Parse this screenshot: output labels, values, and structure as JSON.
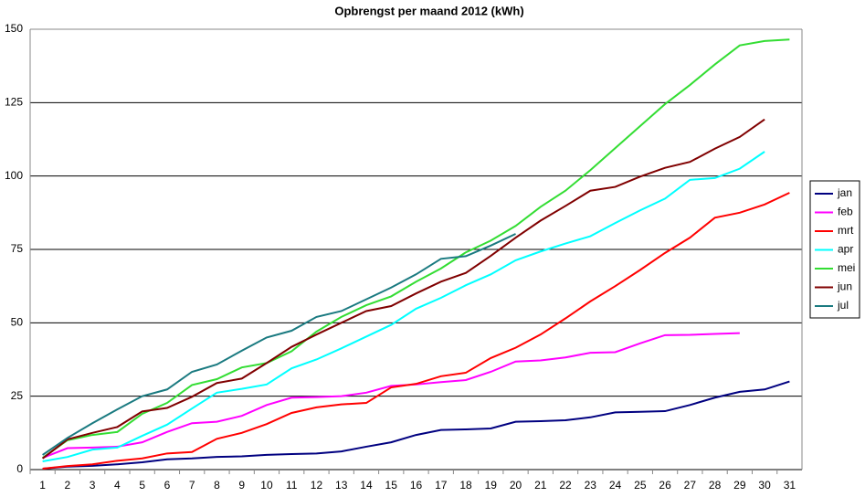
{
  "chart_data": {
    "type": "line",
    "title": "Opbrengst per maand 2012 (kWh)",
    "categories": [
      "1",
      "2",
      "3",
      "4",
      "5",
      "6",
      "7",
      "8",
      "9",
      "10",
      "11",
      "12",
      "13",
      "14",
      "15",
      "16",
      "17",
      "18",
      "19",
      "20",
      "21",
      "22",
      "23",
      "24",
      "25",
      "26",
      "27",
      "28",
      "29",
      "30",
      "31"
    ],
    "ylim": [
      0,
      150
    ],
    "yticks": [
      0,
      25,
      50,
      75,
      100,
      125,
      150
    ],
    "grid": true,
    "legend": "right",
    "series": [
      {
        "name": "jan",
        "color": "#000080",
        "values": [
          0.3,
          1,
          1.3,
          1.8,
          2.5,
          3.5,
          3.8,
          4.3,
          4.5,
          5,
          5.3,
          5.5,
          6.2,
          7.8,
          9.3,
          11.8,
          13.5,
          13.7,
          14,
          16.3,
          16.5,
          16.8,
          17.8,
          19.5,
          19.7,
          19.9,
          22,
          24.5,
          26.5,
          27.3,
          30
        ]
      },
      {
        "name": "feb",
        "color": "#ff00ff",
        "values": [
          4,
          7.3,
          7.5,
          7.8,
          9.3,
          12.8,
          15.8,
          16.3,
          18.3,
          22,
          24.5,
          24.7,
          25,
          26.2,
          28.5,
          29,
          29.8,
          30.5,
          33.3,
          36.8,
          37.2,
          38.2,
          39.8,
          40,
          43,
          45.8,
          45.9,
          46.2,
          46.5,
          null,
          null
        ]
      },
      {
        "name": "mrt",
        "color": "#ff0000",
        "values": [
          0.3,
          1.2,
          1.8,
          3,
          3.8,
          5.5,
          6,
          10.5,
          12.5,
          15.5,
          19.3,
          21.2,
          22.2,
          22.7,
          28,
          29.2,
          31.8,
          33,
          38,
          41.5,
          46,
          51.5,
          57.3,
          62.5,
          68,
          73.8,
          79,
          85.8,
          87.5,
          90.3,
          94.3
        ]
      },
      {
        "name": "apr",
        "color": "#00ffff",
        "values": [
          2.8,
          4.3,
          6.8,
          7.5,
          11.5,
          15.3,
          20.8,
          26.2,
          27.5,
          29,
          34.5,
          37.5,
          41.3,
          45.3,
          49.3,
          54.8,
          58.5,
          62.8,
          66.5,
          71.3,
          74.3,
          77,
          79.5,
          84,
          88.3,
          92.3,
          98.7,
          99.3,
          102.5,
          108.3,
          null
        ]
      },
      {
        "name": "mei",
        "color": "#33dd33",
        "values": [
          4,
          10,
          11.8,
          12.8,
          19,
          22.7,
          28.8,
          30.8,
          34.8,
          36.3,
          40.3,
          47,
          52,
          56,
          59,
          64,
          68.5,
          74,
          78,
          83,
          89.5,
          95,
          102,
          109.5,
          117,
          124.5,
          131,
          138,
          144.5,
          146,
          146.5
        ]
      },
      {
        "name": "jun",
        "color": "#800000",
        "values": [
          3.8,
          10.3,
          12.5,
          14.5,
          19.8,
          21,
          24.8,
          29.5,
          31,
          36.3,
          41.8,
          46,
          50,
          54,
          55.7,
          60,
          64,
          67,
          72.8,
          79,
          84.8,
          89.8,
          95,
          96.3,
          99.8,
          102.8,
          104.8,
          109.3,
          113.3,
          119.3,
          null
        ]
      },
      {
        "name": "jul",
        "color": "#1a7a80",
        "values": [
          5,
          10.8,
          15.8,
          20.5,
          25,
          27.3,
          33.3,
          35.8,
          40.5,
          45,
          47.3,
          52,
          54,
          58,
          62,
          66.5,
          71.8,
          72.7,
          76.3,
          80.3,
          null,
          null,
          null,
          null,
          null,
          null,
          null,
          null,
          null,
          null,
          null
        ]
      }
    ]
  }
}
